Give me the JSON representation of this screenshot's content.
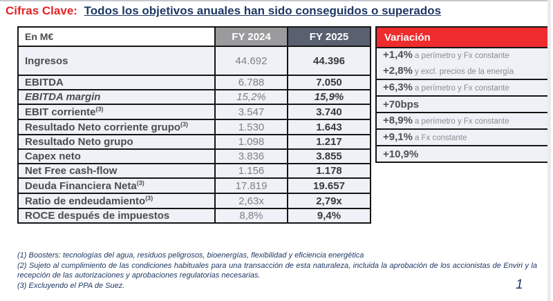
{
  "title": {
    "prefix": "Cifras Clave:",
    "main": "Todos los objetivos anuales han sido conseguidos o superados"
  },
  "table": {
    "unit_header": "En M€",
    "col_fy2024": "FY 2024",
    "col_fy2025": "FY 2025",
    "col_variacion": "Variación",
    "rows": [
      {
        "label": "Ingresos",
        "sup": "",
        "italic": false,
        "fy2024": "44.692",
        "fy2025": "44.396",
        "variacion": [
          {
            "value": "+1,4%",
            "note": "a perímetro y Fx constante"
          },
          {
            "value": "+2,8%",
            "note": "y excl. precios de la energía"
          }
        ]
      },
      {
        "label": "EBITDA",
        "sup": "",
        "italic": false,
        "fy2024": "6.788",
        "fy2025": "7.050",
        "variacion": [
          {
            "value": "+6,3%",
            "note": "a perímetro y Fx constante"
          }
        ]
      },
      {
        "label": "EBITDA margin",
        "sup": "",
        "italic": true,
        "fy2024": "15,2%",
        "fy2025": "15,9%",
        "variacion": [
          {
            "value": "+70bps",
            "note": ""
          }
        ]
      },
      {
        "label": "EBIT corriente",
        "sup": "(3)",
        "italic": false,
        "fy2024": "3.547",
        "fy2025": "3.740",
        "variacion": [
          {
            "value": "+8,9%",
            "note": "a perímetro y Fx constante"
          }
        ]
      },
      {
        "label": "Resultado Neto corriente grupo",
        "sup": "(3)",
        "italic": false,
        "fy2024": "1.530",
        "fy2025": "1.643",
        "variacion": [
          {
            "value": "+9,1%",
            "note": "a Fx constante"
          }
        ]
      },
      {
        "label": "Resultado Neto grupo",
        "sup": "",
        "italic": false,
        "fy2024": "1.098",
        "fy2025": "1.217",
        "variacion": [
          {
            "value": "+10,9%",
            "note": ""
          }
        ]
      },
      {
        "label": "Capex neto",
        "sup": "",
        "italic": false,
        "fy2024": "3.836",
        "fy2025": "3.855",
        "variacion": []
      },
      {
        "label": "Net Free cash-flow",
        "sup": "",
        "italic": false,
        "fy2024": "1.156",
        "fy2025": "1.178",
        "variacion": []
      },
      {
        "label": "Deuda Financiera Neta",
        "sup": "(3)",
        "italic": false,
        "fy2024": "17.819",
        "fy2025": "19.657",
        "variacion": []
      },
      {
        "label": "Ratio de endeudamiento",
        "sup": "(3)",
        "italic": false,
        "fy2024": "2,63x",
        "fy2025": "2,79x",
        "variacion": []
      },
      {
        "label": "ROCE después de impuestos",
        "sup": "",
        "italic": false,
        "fy2024": "8,8%",
        "fy2025": "9,4%",
        "variacion": []
      }
    ]
  },
  "footnotes": [
    "(1) Boosters: tecnologías del agua, residuos peligrosos, bioenergías, flexibilidad y eficiencia energética",
    "(2) Sujeto al cumplimiento de las condiciones habituales para una transacción de esta naturaleza, incluida la aprobación de los accionistas de Enviri y la recepción de las autorizaciones y aprobaciones regulatorias necesarias.",
    "(3)  Excluyendo el PPA de Suez."
  ],
  "page_number": "1",
  "colors": {
    "title_red": "#e32227",
    "navy": "#1f3864",
    "header_gray": "#9b9b9e",
    "header_slate": "#596070",
    "header_red": "#ee2b2d",
    "cell_bg": "#eef1f6",
    "border_black": "#141414"
  }
}
